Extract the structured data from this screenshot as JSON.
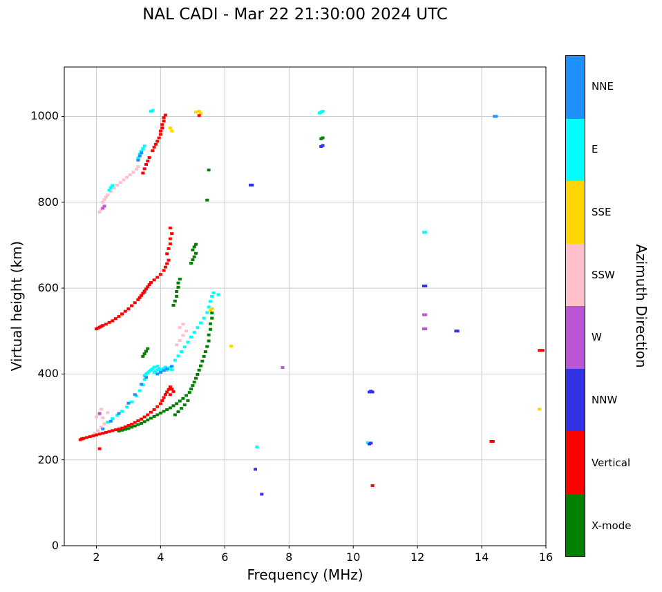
{
  "chart_data": {
    "type": "scatter",
    "title": "NAL CADI - Mar 22 21:30:00 2024 UTC",
    "xlabel": "Frequency (MHz)",
    "ylabel": "Virtual height (km)",
    "xlim": [
      1.0,
      16
    ],
    "ylim": [
      0,
      1115
    ],
    "xticks": [
      2,
      4,
      6,
      8,
      10,
      12,
      14,
      16
    ],
    "yticks": [
      0,
      200,
      400,
      600,
      800,
      1000
    ],
    "grid": true,
    "grid_color": "#cccccc",
    "colorbar_title": "Azimuth Direction",
    "categories_top_to_bottom": [
      "NNE",
      "E",
      "SSE",
      "SSW",
      "W",
      "NNW",
      "Vertical",
      "X-mode"
    ],
    "colors": {
      "NNE": "#1E90FF",
      "E": "#00FFFF",
      "SSE": "#FFD700",
      "SSW": "#FFC0CB",
      "W": "#BA55D3",
      "NNW": "#3333E6",
      "Vertical": "#FF0000",
      "X-mode": "#008000"
    },
    "series": [
      {
        "name": "SSW",
        "color": "#FFC0CB",
        "points": [
          [
            2.1,
            777
          ],
          [
            2.15,
            783
          ],
          [
            2.2,
            800
          ],
          [
            2.25,
            806
          ],
          [
            2.3,
            812
          ],
          [
            2.35,
            817
          ],
          [
            2.45,
            825
          ],
          [
            2.55,
            833
          ],
          [
            2.65,
            840
          ],
          [
            2.75,
            846
          ],
          [
            2.85,
            852
          ],
          [
            2.95,
            858
          ],
          [
            3.05,
            864
          ],
          [
            3.15,
            870
          ],
          [
            3.25,
            877
          ],
          [
            3.3,
            883
          ],
          [
            1.95,
            262
          ],
          [
            2.05,
            268
          ],
          [
            2.15,
            276
          ],
          [
            2.25,
            284
          ],
          [
            2.0,
            300
          ],
          [
            2.1,
            306
          ],
          [
            2.2,
            298
          ],
          [
            2.35,
            310
          ],
          [
            2.15,
            318
          ],
          [
            2.5,
            522
          ],
          [
            2.8,
            537
          ],
          [
            3.0,
            549
          ],
          [
            3.3,
            574
          ],
          [
            4.5,
            468
          ],
          [
            4.6,
            478
          ],
          [
            4.7,
            490
          ],
          [
            4.8,
            500
          ],
          [
            4.6,
            508
          ],
          [
            4.7,
            516
          ]
        ]
      },
      {
        "name": "E",
        "color": "#00FFFF",
        "points": [
          [
            3.5,
            396
          ],
          [
            3.55,
            400
          ],
          [
            3.6,
            403
          ],
          [
            3.65,
            406
          ],
          [
            3.7,
            409
          ],
          [
            3.75,
            412
          ],
          [
            3.8,
            404
          ],
          [
            3.85,
            407
          ],
          [
            3.9,
            410
          ],
          [
            3.95,
            413
          ],
          [
            4.0,
            407
          ],
          [
            4.05,
            410
          ],
          [
            4.1,
            413
          ],
          [
            4.15,
            416
          ],
          [
            4.2,
            409
          ],
          [
            4.25,
            412
          ],
          [
            4.3,
            415
          ],
          [
            4.35,
            410
          ],
          [
            3.8,
            416
          ],
          [
            3.9,
            418
          ],
          [
            2.35,
            288
          ],
          [
            2.5,
            296
          ],
          [
            2.65,
            304
          ],
          [
            2.8,
            313
          ],
          [
            2.95,
            323
          ],
          [
            3.1,
            335
          ],
          [
            3.25,
            349
          ],
          [
            3.35,
            361
          ],
          [
            3.45,
            375
          ],
          [
            3.5,
            387
          ],
          [
            4.45,
            432
          ],
          [
            4.55,
            442
          ],
          [
            4.65,
            452
          ],
          [
            4.75,
            463
          ],
          [
            4.85,
            474
          ],
          [
            4.95,
            486
          ],
          [
            5.05,
            497
          ],
          [
            5.15,
            508
          ],
          [
            5.25,
            519
          ],
          [
            5.35,
            530
          ],
          [
            5.45,
            543
          ],
          [
            5.5,
            556
          ],
          [
            5.55,
            569
          ],
          [
            5.6,
            581
          ],
          [
            5.65,
            589
          ],
          [
            5.8,
            585
          ],
          [
            2.4,
            828
          ],
          [
            2.45,
            834
          ],
          [
            2.5,
            839
          ],
          [
            3.3,
            903
          ],
          [
            3.35,
            912
          ],
          [
            3.4,
            919
          ],
          [
            3.45,
            925
          ],
          [
            3.5,
            931
          ],
          [
            3.7,
            1012
          ],
          [
            3.75,
            1014
          ],
          [
            7.0,
            230
          ],
          [
            12.2,
            730
          ],
          [
            12.25,
            730
          ],
          [
            8.95,
            1008
          ],
          [
            9.0,
            1010
          ],
          [
            9.05,
            1012
          ],
          [
            10.45,
            240
          ]
        ]
      },
      {
        "name": "NNE",
        "color": "#1E90FF",
        "points": [
          [
            2.2,
            272
          ],
          [
            2.45,
            290
          ],
          [
            2.7,
            308
          ],
          [
            3.0,
            332
          ],
          [
            3.2,
            352
          ],
          [
            3.4,
            376
          ],
          [
            3.55,
            392
          ],
          [
            3.9,
            400
          ],
          [
            4.0,
            404
          ],
          [
            4.1,
            408
          ],
          [
            4.2,
            412
          ],
          [
            4.35,
            418
          ],
          [
            3.3,
            898
          ],
          [
            3.35,
            908
          ],
          [
            3.4,
            915
          ],
          [
            14.4,
            1000
          ],
          [
            14.45,
            1000
          ],
          [
            3.5,
            590
          ]
        ]
      },
      {
        "name": "SSE",
        "color": "#FFD700",
        "points": [
          [
            4.3,
            973
          ],
          [
            4.35,
            966
          ],
          [
            5.1,
            1010
          ],
          [
            5.2,
            1012
          ],
          [
            5.25,
            1007
          ],
          [
            5.55,
            548
          ],
          [
            5.6,
            552
          ],
          [
            6.2,
            465
          ],
          [
            15.8,
            318
          ]
        ]
      },
      {
        "name": "W",
        "color": "#BA55D3",
        "points": [
          [
            2.2,
            786
          ],
          [
            2.25,
            791
          ],
          [
            2.1,
            308
          ],
          [
            7.8,
            415
          ],
          [
            12.2,
            505
          ],
          [
            12.25,
            505
          ],
          [
            12.2,
            538
          ],
          [
            12.25,
            538
          ]
        ]
      },
      {
        "name": "NNW",
        "color": "#3333E6",
        "points": [
          [
            6.8,
            840
          ],
          [
            6.85,
            840
          ],
          [
            6.95,
            178
          ],
          [
            7.15,
            120
          ],
          [
            9.0,
            930
          ],
          [
            9.05,
            932
          ],
          [
            10.5,
            358
          ],
          [
            10.55,
            360
          ],
          [
            10.6,
            358
          ],
          [
            10.5,
            237
          ],
          [
            10.55,
            239
          ],
          [
            12.2,
            605
          ],
          [
            12.25,
            605
          ],
          [
            13.2,
            500
          ],
          [
            13.25,
            500
          ]
        ]
      },
      {
        "name": "X-mode",
        "color": "#008000",
        "points": [
          [
            2.7,
            267
          ],
          [
            2.8,
            269
          ],
          [
            2.9,
            271
          ],
          [
            3.0,
            273
          ],
          [
            3.1,
            276
          ],
          [
            3.2,
            279
          ],
          [
            3.3,
            282
          ],
          [
            3.4,
            285
          ],
          [
            3.5,
            289
          ],
          [
            3.6,
            293
          ],
          [
            3.7,
            297
          ],
          [
            3.8,
            301
          ],
          [
            3.9,
            305
          ],
          [
            4.0,
            309
          ],
          [
            4.1,
            313
          ],
          [
            4.2,
            317
          ],
          [
            4.3,
            321
          ],
          [
            4.4,
            326
          ],
          [
            4.45,
            305
          ],
          [
            4.5,
            331
          ],
          [
            4.55,
            312
          ],
          [
            4.6,
            337
          ],
          [
            4.65,
            320
          ],
          [
            4.7,
            343
          ],
          [
            4.75,
            328
          ],
          [
            4.8,
            350
          ],
          [
            4.85,
            338
          ],
          [
            4.9,
            357
          ],
          [
            4.95,
            365
          ],
          [
            5.0,
            373
          ],
          [
            5.05,
            381
          ],
          [
            5.1,
            390
          ],
          [
            5.15,
            399
          ],
          [
            5.2,
            409
          ],
          [
            5.25,
            419
          ],
          [
            5.3,
            430
          ],
          [
            5.35,
            441
          ],
          [
            5.4,
            452
          ],
          [
            5.45,
            464
          ],
          [
            5.5,
            477
          ],
          [
            5.5,
            491
          ],
          [
            5.55,
            504
          ],
          [
            5.55,
            517
          ],
          [
            5.6,
            530
          ],
          [
            5.6,
            542
          ],
          [
            3.45,
            441
          ],
          [
            3.5,
            447
          ],
          [
            3.55,
            453
          ],
          [
            3.6,
            459
          ],
          [
            4.4,
            560
          ],
          [
            4.45,
            570
          ],
          [
            4.5,
            581
          ],
          [
            4.5,
            592
          ],
          [
            4.55,
            602
          ],
          [
            4.55,
            612
          ],
          [
            4.6,
            621
          ],
          [
            4.95,
            658
          ],
          [
            5.0,
            666
          ],
          [
            5.05,
            673
          ],
          [
            5.1,
            681
          ],
          [
            5.0,
            689
          ],
          [
            5.05,
            696
          ],
          [
            5.1,
            702
          ],
          [
            5.45,
            805
          ],
          [
            5.5,
            875
          ],
          [
            9.0,
            948
          ],
          [
            9.05,
            950
          ]
        ]
      },
      {
        "name": "Vertical",
        "color": "#FF0000",
        "points": [
          [
            3.45,
            868
          ],
          [
            3.5,
            878
          ],
          [
            3.55,
            888
          ],
          [
            3.6,
            896
          ],
          [
            3.65,
            904
          ],
          [
            3.75,
            920
          ],
          [
            3.8,
            928
          ],
          [
            3.85,
            935
          ],
          [
            3.9,
            942
          ],
          [
            3.95,
            950
          ],
          [
            4.0,
            958
          ],
          [
            4.0,
            966
          ],
          [
            4.05,
            973
          ],
          [
            4.05,
            981
          ],
          [
            4.1,
            989
          ],
          [
            4.1,
            997
          ],
          [
            4.15,
            1003
          ],
          [
            2.0,
            505
          ],
          [
            2.05,
            507
          ],
          [
            2.1,
            509
          ],
          [
            2.15,
            511
          ],
          [
            2.2,
            513
          ],
          [
            2.3,
            516
          ],
          [
            2.4,
            520
          ],
          [
            2.5,
            524
          ],
          [
            2.6,
            529
          ],
          [
            2.7,
            534
          ],
          [
            2.8,
            540
          ],
          [
            2.9,
            546
          ],
          [
            3.0,
            552
          ],
          [
            3.1,
            559
          ],
          [
            3.2,
            566
          ],
          [
            3.3,
            573
          ],
          [
            3.35,
            578
          ],
          [
            3.4,
            583
          ],
          [
            3.45,
            588
          ],
          [
            3.5,
            593
          ],
          [
            3.55,
            598
          ],
          [
            3.6,
            603
          ],
          [
            3.65,
            608
          ],
          [
            3.7,
            613
          ],
          [
            3.8,
            619
          ],
          [
            3.9,
            625
          ],
          [
            4.0,
            632
          ],
          [
            4.1,
            641
          ],
          [
            4.15,
            649
          ],
          [
            4.2,
            657
          ],
          [
            4.25,
            665
          ],
          [
            4.2,
            680
          ],
          [
            4.25,
            692
          ],
          [
            4.3,
            703
          ],
          [
            4.3,
            715
          ],
          [
            4.35,
            727
          ],
          [
            4.3,
            740
          ],
          [
            1.5,
            247
          ],
          [
            1.55,
            249
          ],
          [
            1.6,
            250
          ],
          [
            1.7,
            252
          ],
          [
            1.8,
            254
          ],
          [
            1.9,
            256
          ],
          [
            2.0,
            258
          ],
          [
            2.1,
            226
          ],
          [
            2.1,
            260
          ],
          [
            2.2,
            262
          ],
          [
            2.3,
            264
          ],
          [
            2.4,
            266
          ],
          [
            2.5,
            268
          ],
          [
            2.6,
            270
          ],
          [
            2.7,
            272
          ],
          [
            2.8,
            274
          ],
          [
            2.9,
            277
          ],
          [
            3.0,
            280
          ],
          [
            3.1,
            283
          ],
          [
            3.2,
            287
          ],
          [
            3.3,
            291
          ],
          [
            3.4,
            295
          ],
          [
            3.5,
            300
          ],
          [
            3.6,
            305
          ],
          [
            3.7,
            311
          ],
          [
            3.8,
            317
          ],
          [
            3.9,
            324
          ],
          [
            4.0,
            331
          ],
          [
            4.05,
            338
          ],
          [
            4.1,
            345
          ],
          [
            4.15,
            352
          ],
          [
            4.2,
            358
          ],
          [
            4.25,
            364
          ],
          [
            4.3,
            370
          ],
          [
            4.35,
            365
          ],
          [
            4.4,
            359
          ],
          [
            4.3,
            352
          ],
          [
            5.2,
            1002
          ],
          [
            10.6,
            140
          ],
          [
            14.3,
            243
          ],
          [
            14.35,
            243
          ],
          [
            15.8,
            455
          ],
          [
            15.9,
            455
          ]
        ]
      }
    ]
  }
}
